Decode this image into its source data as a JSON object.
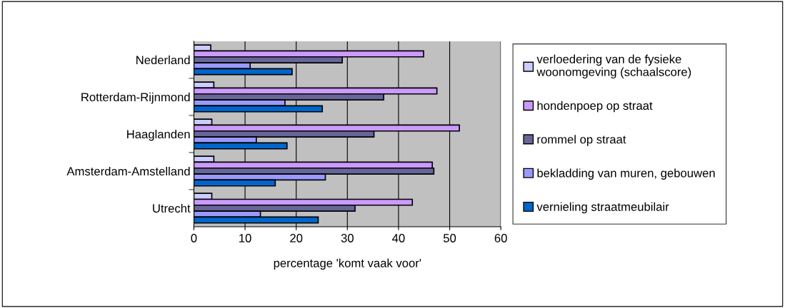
{
  "chart_data": {
    "type": "bar",
    "orientation": "horizontal",
    "xlabel": "percentage 'komt vaak voor'",
    "categories": [
      "Nederland",
      "Rotterdam-Rijnmond",
      "Haaglanden",
      "Amsterdam-Amstelland",
      "Utrecht"
    ],
    "series": [
      {
        "name": "verloedering van de fysieke\nwoonomgeving (schaalscore)",
        "color": "#ccccff",
        "values": [
          3.3,
          3.9,
          3.5,
          3.9,
          3.5
        ]
      },
      {
        "name": "hondenpoep op straat",
        "color": "#cc99ff",
        "values": [
          44.9,
          47.5,
          51.9,
          46.6,
          42.7
        ]
      },
      {
        "name": "rommel op straat",
        "color": "#666699",
        "values": [
          29.0,
          37.1,
          35.2,
          46.9,
          31.5
        ]
      },
      {
        "name": "bekladding van muren, gebouwen",
        "color": "#9999ff",
        "values": [
          11.0,
          17.8,
          12.2,
          25.7,
          13.0
        ]
      },
      {
        "name": "vernieling straatmeubilair",
        "color": "#0066cc",
        "values": [
          19.2,
          25.1,
          18.2,
          15.9,
          24.3
        ]
      }
    ],
    "xlim": [
      0,
      60
    ],
    "xticks": [
      0,
      10,
      20,
      30,
      40,
      50,
      60
    ],
    "grid": "x",
    "legend": "right"
  }
}
